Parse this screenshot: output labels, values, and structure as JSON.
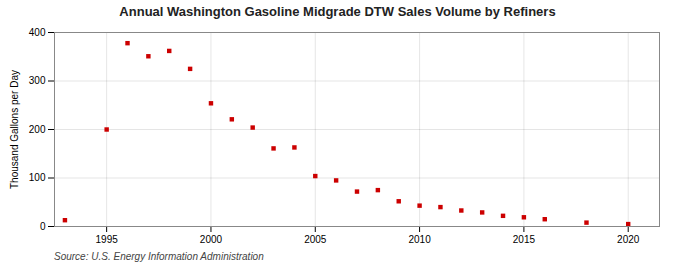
{
  "chart_data": {
    "type": "scatter",
    "title": "Annual Washington Gasoline Midgrade DTW Sales Volume by Refiners",
    "ylabel": "Thousand Gallons per Day",
    "source": "Source: U.S. Energy Information Administration",
    "x": [
      1993,
      1995,
      1996,
      1997,
      1998,
      1999,
      2000,
      2001,
      2002,
      2003,
      2004,
      2005,
      2006,
      2007,
      2008,
      2009,
      2010,
      2011,
      2012,
      2013,
      2014,
      2015,
      2016,
      2018,
      2020
    ],
    "values": [
      13,
      200,
      378,
      351,
      362,
      325,
      254,
      221,
      204,
      161,
      163,
      104,
      95,
      72,
      75,
      52,
      43,
      40,
      33,
      29,
      22,
      19,
      15,
      8,
      5
    ],
    "color": "#cc0000",
    "marker": "square",
    "xlim": [
      1992.5,
      2021.5
    ],
    "ylim": [
      0,
      400
    ],
    "xticks": [
      1995,
      2000,
      2005,
      2010,
      2015,
      2020
    ],
    "yticks": [
      0,
      100,
      200,
      300,
      400
    ],
    "grid": true
  }
}
